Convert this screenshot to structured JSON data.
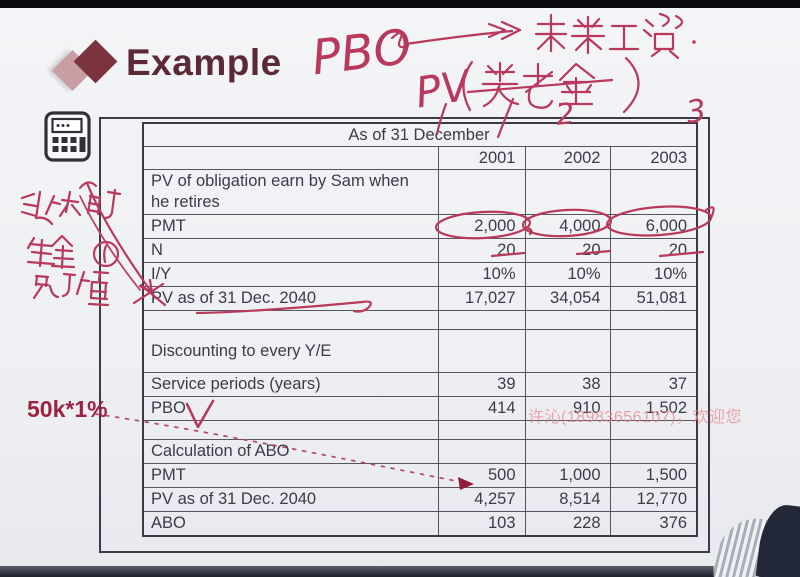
{
  "slide": {
    "title": "Example",
    "table": {
      "merged_header": "As of 31 December",
      "year_columns": [
        "2001",
        "2002",
        "2003"
      ],
      "rows": [
        {
          "kind": "label2",
          "label": "PV of obligation earn by Sam when he retires",
          "values": [
            "",
            "",
            ""
          ]
        },
        {
          "kind": "data",
          "label": "PMT",
          "values": [
            "2,000",
            "4,000",
            "6,000"
          ]
        },
        {
          "kind": "data",
          "label": "N",
          "values": [
            "20",
            "20",
            "20"
          ]
        },
        {
          "kind": "data",
          "label": "I/Y",
          "values": [
            "10%",
            "10%",
            "10%"
          ]
        },
        {
          "kind": "data",
          "label": "PV as of 31 Dec. 2040",
          "values": [
            "17,027",
            "34,054",
            "51,081"
          ]
        },
        {
          "kind": "spacer",
          "label": "",
          "values": [
            "",
            "",
            ""
          ]
        },
        {
          "kind": "tall",
          "label": "Discounting to every Y/E",
          "values": [
            "",
            "",
            ""
          ]
        },
        {
          "kind": "data",
          "label": "Service periods (years)",
          "values": [
            "39",
            "38",
            "37"
          ]
        },
        {
          "kind": "data",
          "label": "PBO",
          "values": [
            "414",
            "910",
            "1,502"
          ]
        },
        {
          "kind": "spacer",
          "label": "",
          "values": [
            "",
            "",
            ""
          ]
        },
        {
          "kind": "data",
          "label": "Calculation of ABO",
          "values": [
            "",
            "",
            ""
          ]
        },
        {
          "kind": "data",
          "label": "PMT",
          "values": [
            "500",
            "1,000",
            "1,500"
          ]
        },
        {
          "kind": "data",
          "label": "PV as of 31 Dec. 2040",
          "values": [
            "4,257",
            "8,514",
            "12,770"
          ]
        },
        {
          "kind": "data",
          "label": "ABO",
          "values": [
            "103",
            "228",
            "376"
          ]
        }
      ]
    },
    "annotations": {
      "pbo_label": "PBO",
      "future_salary": "未来工资",
      "pv_label": "PV",
      "pv_pension_text": "PV(养老金)",
      "column_marks": [
        "1",
        "2",
        "3"
      ],
      "retirement_note": "退休时 年金 现值①",
      "side_label": "50k*1%",
      "pbo_checkmark": "✓",
      "circled_values": [
        "2,000",
        "4,000",
        "6,000"
      ],
      "dashed_arrow_target": "500"
    },
    "watermark": "许沁(18983656107)，欢迎您",
    "colors": {
      "accent_maroon": "#5c2936",
      "ink_red": "#b8395c",
      "side_label_red": "#9b2340",
      "watermark_pink": "#e98a94"
    }
  }
}
